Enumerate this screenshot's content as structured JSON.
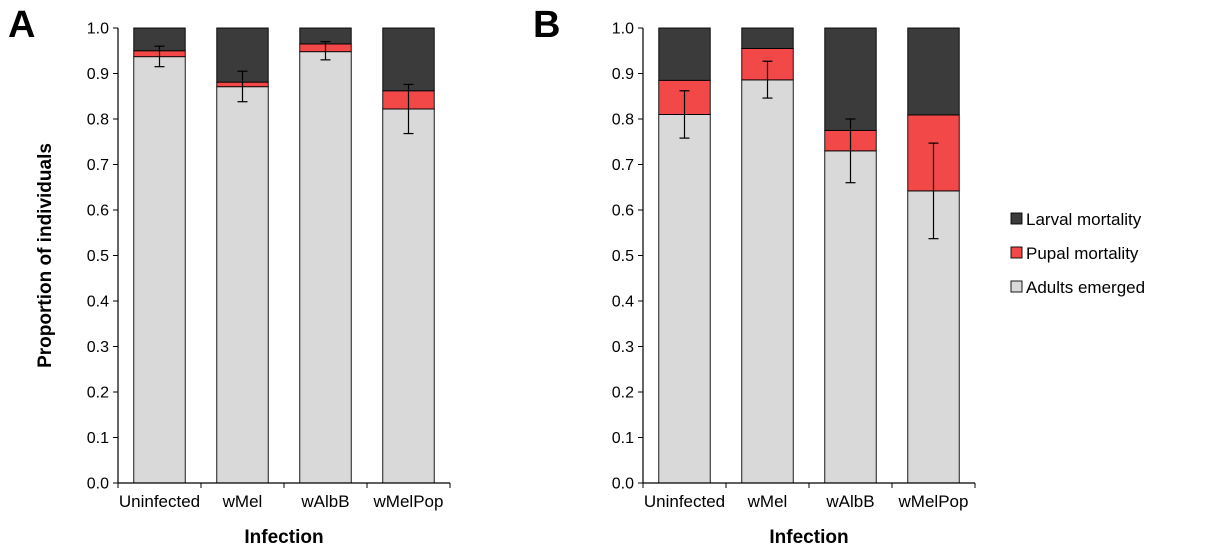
{
  "chart_data": [
    {
      "type": "bar",
      "stacked": true,
      "panel_label": "A",
      "categories": [
        "Uninfected",
        "wMel",
        "wAlbB",
        "wMelPop"
      ],
      "series": [
        {
          "name": "Adults emerged",
          "values": [
            0.937,
            0.871,
            0.948,
            0.822
          ]
        },
        {
          "name": "Pupal mortality",
          "values": [
            0.013,
            0.01,
            0.017,
            0.04
          ]
        },
        {
          "name": "Larval mortality",
          "values": [
            0.05,
            0.119,
            0.035,
            0.138
          ]
        }
      ],
      "error_bars": [
        {
          "center": 0.937,
          "low": 0.915,
          "high": 0.96
        },
        {
          "center": 0.871,
          "low": 0.838,
          "high": 0.905
        },
        {
          "center": 0.948,
          "low": 0.93,
          "high": 0.97
        },
        {
          "center": 0.822,
          "low": 0.768,
          "high": 0.876
        }
      ],
      "xlabel": "Infection",
      "ylabel": "Proportion of individuals",
      "ylim": [
        0,
        1
      ],
      "yticks": [
        "0.0",
        "0.1",
        "0.2",
        "0.3",
        "0.4",
        "0.5",
        "0.6",
        "0.7",
        "0.8",
        "0.9",
        "1.0"
      ],
      "grid": false
    },
    {
      "type": "bar",
      "stacked": true,
      "panel_label": "B",
      "categories": [
        "Uninfected",
        "wMel",
        "wAlbB",
        "wMelPop"
      ],
      "series": [
        {
          "name": "Adults emerged",
          "values": [
            0.81,
            0.886,
            0.73,
            0.642
          ]
        },
        {
          "name": "Pupal mortality",
          "values": [
            0.075,
            0.069,
            0.045,
            0.167
          ]
        },
        {
          "name": "Larval mortality",
          "values": [
            0.115,
            0.045,
            0.225,
            0.191
          ]
        }
      ],
      "error_bars": [
        {
          "center": 0.81,
          "low": 0.758,
          "high": 0.862
        },
        {
          "center": 0.886,
          "low": 0.846,
          "high": 0.927
        },
        {
          "center": 0.73,
          "low": 0.66,
          "high": 0.8
        },
        {
          "center": 0.642,
          "low": 0.537,
          "high": 0.747
        }
      ],
      "xlabel": "Infection",
      "ylabel": "",
      "ylim": [
        0,
        1
      ],
      "yticks": [
        "0.0",
        "0.1",
        "0.2",
        "0.3",
        "0.4",
        "0.5",
        "0.6",
        "0.7",
        "0.8",
        "0.9",
        "1.0"
      ],
      "grid": false
    }
  ],
  "legend": {
    "placement": "right",
    "items": [
      {
        "label": "Larval mortality",
        "color": "#3b3b3b"
      },
      {
        "label": "Pupal mortality",
        "color": "#f24848"
      },
      {
        "label": "Adults emerged",
        "color": "#d9d9d9"
      }
    ]
  },
  "colors": {
    "Adults emerged": "#d9d9d9",
    "Pupal mortality": "#f24848",
    "Larval mortality": "#3b3b3b"
  }
}
